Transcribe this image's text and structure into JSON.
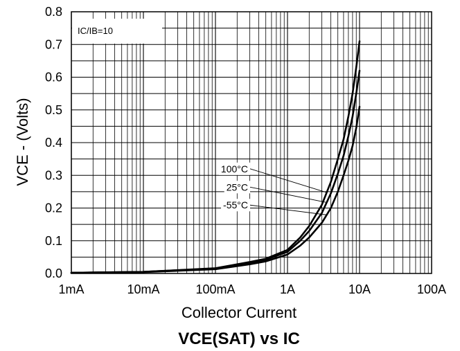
{
  "chart_data": {
    "type": "line",
    "title": "VCE(SAT) vs IC",
    "xlabel": "Collector Current",
    "ylabel": "VCE - (Volts)",
    "x_scale": "log",
    "xlim": [
      0.001,
      100
    ],
    "ylim": [
      0,
      0.8
    ],
    "x_tick_values": [
      0.001,
      0.01,
      0.1,
      1,
      10,
      100
    ],
    "x_tick_labels": [
      "1mA",
      "10mA",
      "100mA",
      "1A",
      "10A",
      "100A"
    ],
    "y_tick_values": [
      0,
      0.1,
      0.2,
      0.3,
      0.4,
      0.5,
      0.6,
      0.7,
      0.8
    ],
    "y_tick_labels": [
      "0.0",
      "0.1",
      "0.2",
      "0.3",
      "0.4",
      "0.5",
      "0.6",
      "0.7",
      "0.8"
    ],
    "grid": true,
    "annotation": "IC/IB=10",
    "series": [
      {
        "name": "100°C",
        "x": [
          0.001,
          0.01,
          0.1,
          0.3,
          0.5,
          1,
          1.5,
          2,
          3,
          4,
          5,
          6,
          7,
          8,
          9,
          10
        ],
        "y": [
          0.002,
          0.005,
          0.016,
          0.035,
          0.045,
          0.072,
          0.11,
          0.145,
          0.21,
          0.28,
          0.35,
          0.41,
          0.48,
          0.55,
          0.63,
          0.71
        ]
      },
      {
        "name": "25°C",
        "x": [
          0.001,
          0.01,
          0.1,
          0.3,
          0.5,
          1,
          1.5,
          2,
          3,
          4,
          5,
          6,
          7,
          8,
          9,
          10
        ],
        "y": [
          0.002,
          0.005,
          0.015,
          0.032,
          0.042,
          0.066,
          0.1,
          0.13,
          0.185,
          0.245,
          0.305,
          0.36,
          0.42,
          0.48,
          0.55,
          0.62
        ]
      },
      {
        "name": "-55°C",
        "x": [
          0.001,
          0.01,
          0.1,
          0.3,
          0.5,
          1,
          1.5,
          2,
          3,
          4,
          5,
          6,
          7,
          8,
          9,
          10
        ],
        "y": [
          0.002,
          0.004,
          0.013,
          0.028,
          0.037,
          0.058,
          0.085,
          0.11,
          0.155,
          0.2,
          0.25,
          0.3,
          0.345,
          0.39,
          0.445,
          0.51
        ]
      }
    ]
  }
}
